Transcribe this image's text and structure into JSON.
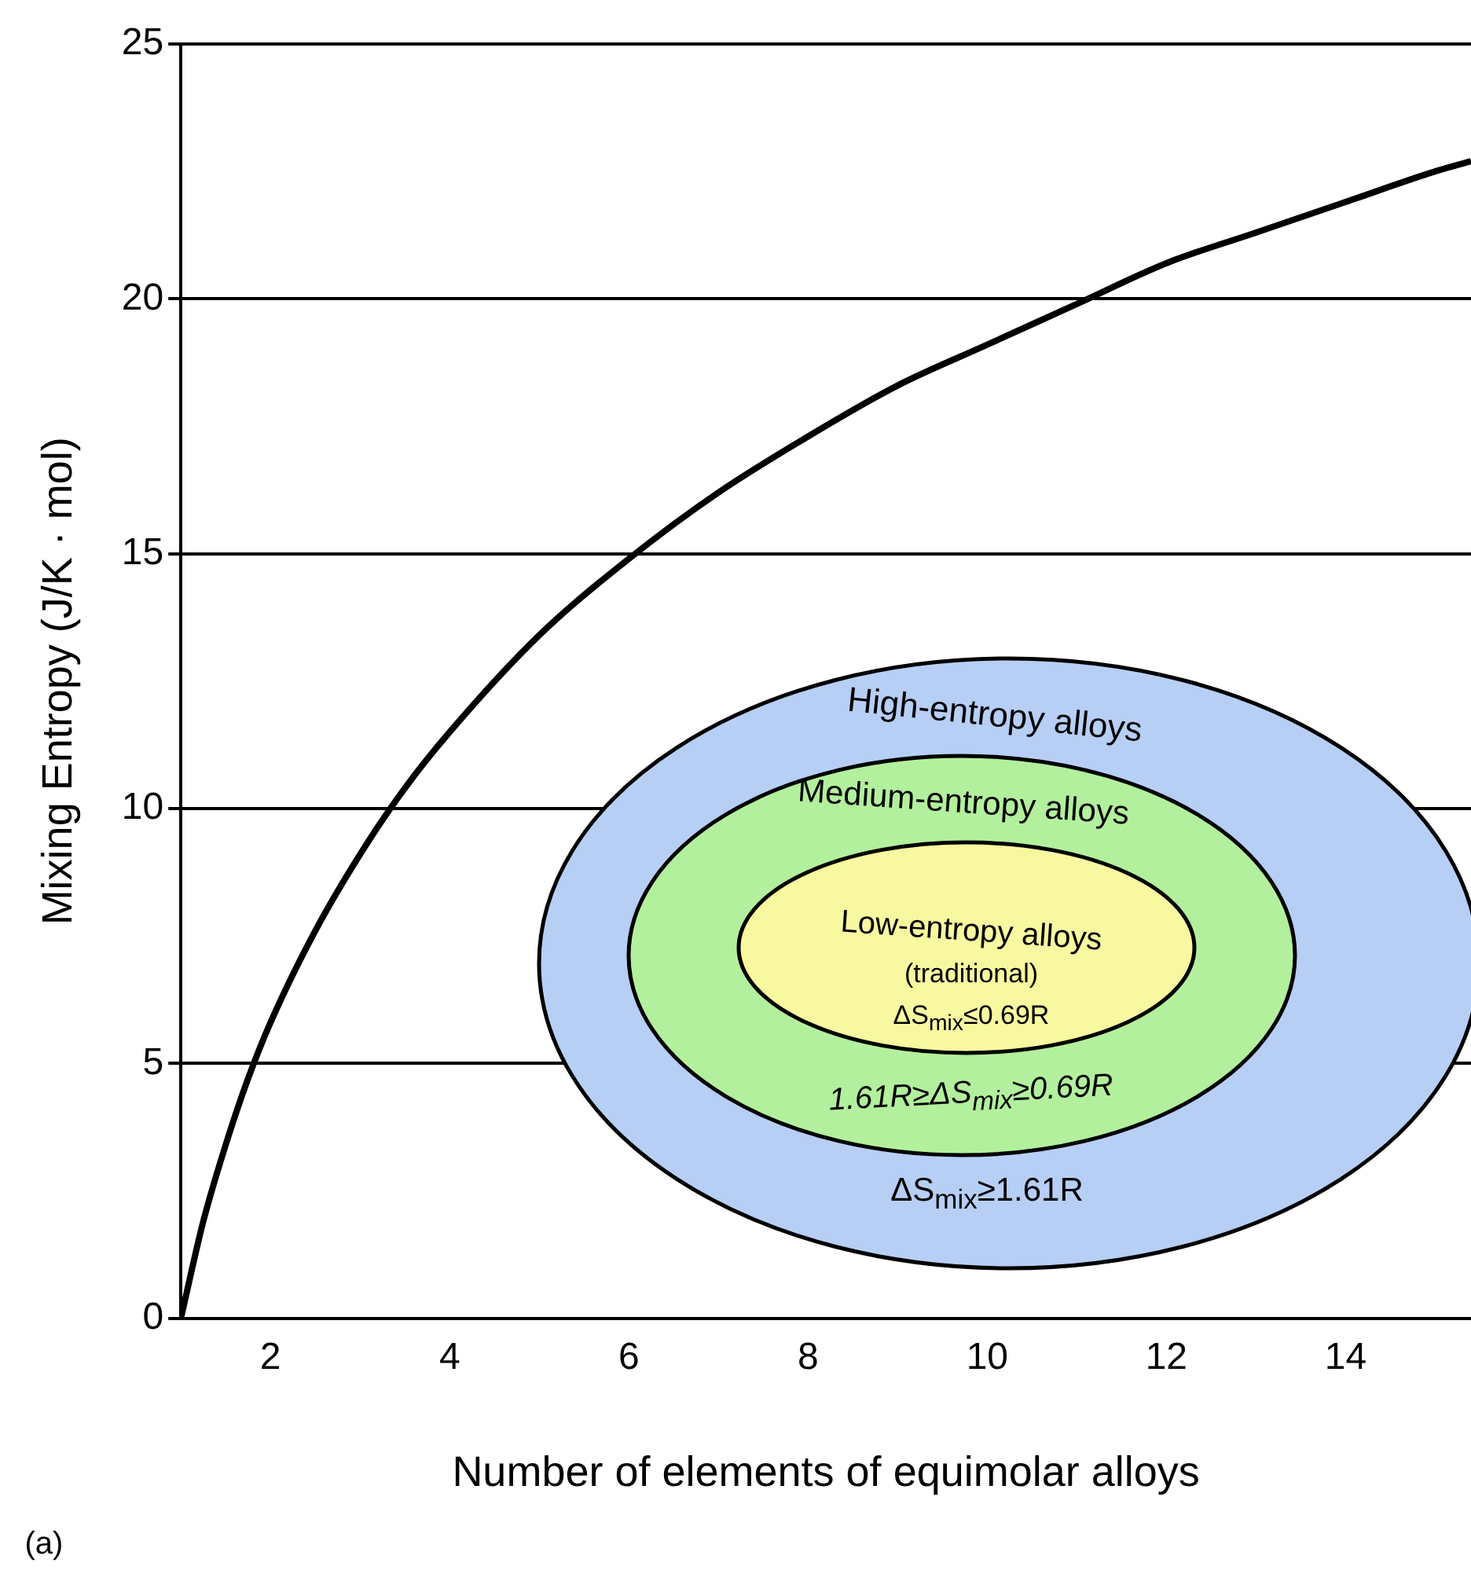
{
  "chart_data": {
    "type": "line",
    "xlabel": "Number of elements of equimolar alloys",
    "ylabel": "Mixing Entropy (J/K · mol)",
    "x": [
      1,
      1.25,
      1.5,
      1.75,
      2,
      2.5,
      3,
      3.5,
      4,
      5,
      6,
      7,
      8,
      9,
      10,
      11,
      12,
      13,
      14,
      15,
      15.4
    ],
    "series": [
      {
        "color": "#000000",
        "values": [
          0,
          1.9,
          3.4,
          4.7,
          5.8,
          7.6,
          9.1,
          10.4,
          11.5,
          13.4,
          14.9,
          16.2,
          17.3,
          18.3,
          19.1,
          19.9,
          20.7,
          21.3,
          21.9,
          22.5,
          22.7
        ]
      }
    ],
    "xlim": [
      1,
      15.4
    ],
    "ylim": [
      0,
      25
    ],
    "xticks": [
      2,
      4,
      6,
      8,
      10,
      12,
      14
    ],
    "yticks": [
      0,
      5,
      10,
      15,
      20,
      25
    ],
    "grid": "y",
    "legend": false,
    "marker": "none",
    "line_style": "solid",
    "annotations": [
      "High-entropy alloys",
      "Medium-entropy alloys",
      "Low-entropy alloys",
      "(traditional)",
      "ΔS$_{mix}$≤0.69R",
      "1.61R≥ΔS$_{mix}$≥0.69R",
      "ΔS$_{mix}$≥1.61R",
      "(a)"
    ]
  }
}
